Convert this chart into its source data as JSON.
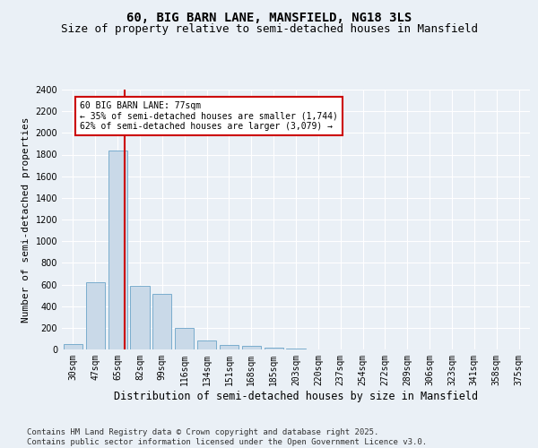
{
  "title_line1": "60, BIG BARN LANE, MANSFIELD, NG18 3LS",
  "title_line2": "Size of property relative to semi-detached houses in Mansfield",
  "xlabel": "Distribution of semi-detached houses by size in Mansfield",
  "ylabel": "Number of semi-detached properties",
  "categories": [
    "30sqm",
    "47sqm",
    "65sqm",
    "82sqm",
    "99sqm",
    "116sqm",
    "134sqm",
    "151sqm",
    "168sqm",
    "185sqm",
    "203sqm",
    "220sqm",
    "237sqm",
    "254sqm",
    "272sqm",
    "289sqm",
    "306sqm",
    "323sqm",
    "341sqm",
    "358sqm",
    "375sqm"
  ],
  "values": [
    50,
    620,
    1840,
    590,
    510,
    200,
    80,
    40,
    30,
    15,
    5,
    2,
    1,
    0,
    0,
    0,
    0,
    0,
    0,
    0,
    0
  ],
  "bar_color": "#c9d9e8",
  "bar_edge_color": "#7aadce",
  "vline_color": "#cc0000",
  "vline_x": 2.3,
  "annotation_text": "60 BIG BARN LANE: 77sqm\n← 35% of semi-detached houses are smaller (1,744)\n62% of semi-detached houses are larger (3,079) →",
  "annotation_box_color": "#ffffff",
  "annotation_box_edge": "#cc0000",
  "ylim": [
    0,
    2400
  ],
  "yticks": [
    0,
    200,
    400,
    600,
    800,
    1000,
    1200,
    1400,
    1600,
    1800,
    2000,
    2200,
    2400
  ],
  "footnote": "Contains HM Land Registry data © Crown copyright and database right 2025.\nContains public sector information licensed under the Open Government Licence v3.0.",
  "bg_color": "#eaf0f6",
  "plot_bg_color": "#eaf0f6",
  "title_fontsize": 10,
  "subtitle_fontsize": 9,
  "tick_fontsize": 7,
  "ylabel_fontsize": 8,
  "xlabel_fontsize": 8.5,
  "footnote_fontsize": 6.5
}
